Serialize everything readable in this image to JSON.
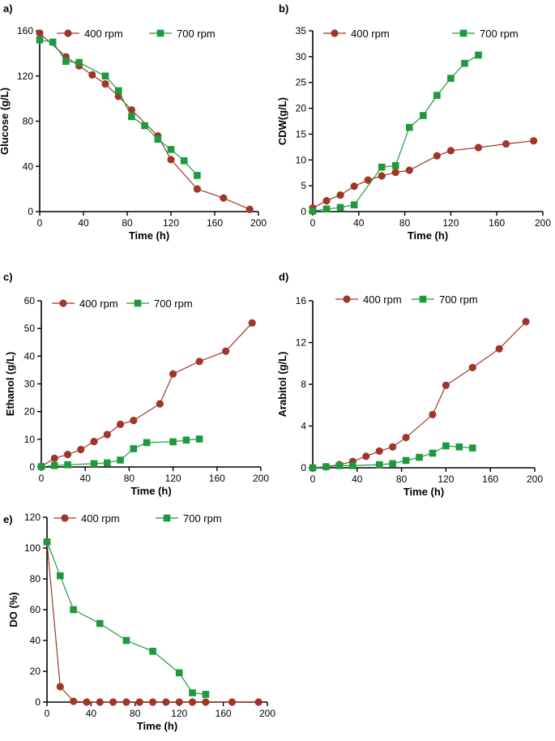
{
  "colors": {
    "series_400": "#A0362A",
    "series_700": "#1E9A3E",
    "axis": "#000000"
  },
  "chart_data": [
    {
      "panel": "a)",
      "type": "line",
      "xlabel": "Time (h)",
      "ylabel": "Glucose (g/L)",
      "xlim": [
        0,
        200
      ],
      "xticks": [
        0,
        40,
        80,
        120,
        160,
        200
      ],
      "ylim": [
        0,
        160
      ],
      "yticks": [
        0,
        40,
        80,
        120,
        160
      ],
      "series": [
        {
          "name": "400 rpm",
          "marker": "circle",
          "x": [
            0,
            24,
            36,
            48,
            60,
            72,
            84,
            108,
            120,
            144,
            168,
            192
          ],
          "y": [
            158,
            137,
            129,
            121,
            113,
            102,
            90,
            67,
            46,
            20,
            12,
            2
          ]
        },
        {
          "name": "700 rpm",
          "marker": "square",
          "x": [
            0,
            12,
            24,
            36,
            60,
            72,
            84,
            96,
            108,
            120,
            132,
            144
          ],
          "y": [
            152,
            150,
            133,
            132,
            120,
            107,
            84,
            76,
            64,
            55,
            45,
            32
          ]
        }
      ]
    },
    {
      "panel": "b)",
      "type": "line",
      "xlabel": "Time (h)",
      "ylabel": "CDW(g/L)",
      "xlim": [
        0,
        200
      ],
      "xticks": [
        0,
        40,
        80,
        120,
        160,
        200
      ],
      "ylim": [
        0,
        35
      ],
      "yticks": [
        0,
        5,
        10,
        15,
        20,
        25,
        30,
        35
      ],
      "series": [
        {
          "name": "400 rpm",
          "marker": "circle",
          "x": [
            0,
            12,
            24,
            36,
            48,
            60,
            72,
            84,
            108,
            120,
            144,
            168,
            192
          ],
          "y": [
            0.7,
            2.1,
            3.2,
            4.9,
            6.1,
            6.9,
            7.6,
            8.0,
            10.8,
            11.8,
            12.4,
            13.1,
            13.7
          ]
        },
        {
          "name": "700 rpm",
          "marker": "square",
          "x": [
            0,
            12,
            24,
            36,
            60,
            72,
            84,
            96,
            108,
            120,
            132,
            144
          ],
          "y": [
            0.1,
            0.5,
            0.8,
            1.3,
            8.6,
            8.9,
            16.3,
            18.6,
            22.5,
            25.8,
            28.7,
            30.3
          ]
        }
      ]
    },
    {
      "panel": "c)",
      "type": "line",
      "xlabel": "Time (h)",
      "ylabel": "Ethanol (g/L)",
      "xlim": [
        0,
        200
      ],
      "xticks": [
        0,
        40,
        80,
        120,
        160,
        200
      ],
      "ylim": [
        0,
        60
      ],
      "yticks": [
        0,
        10,
        20,
        30,
        40,
        50,
        60
      ],
      "series": [
        {
          "name": "400 rpm",
          "marker": "circle",
          "x": [
            0,
            12,
            24,
            36,
            48,
            60,
            72,
            84,
            108,
            120,
            144,
            168,
            192
          ],
          "y": [
            0.2,
            3.1,
            4.5,
            6.3,
            9.2,
            11.7,
            15.4,
            16.8,
            22.8,
            33.6,
            38.1,
            41.8,
            52.0
          ]
        },
        {
          "name": "700 rpm",
          "marker": "square",
          "x": [
            0,
            12,
            24,
            48,
            60,
            72,
            84,
            96,
            120,
            132,
            144
          ],
          "y": [
            0.1,
            0.5,
            0.8,
            1.2,
            1.5,
            2.5,
            6.6,
            8.8,
            9.1,
            9.7,
            10.1
          ]
        }
      ]
    },
    {
      "panel": "d)",
      "type": "line",
      "xlabel": "Time (h)",
      "ylabel": "Arabitol (g/L)",
      "xlim": [
        0,
        200
      ],
      "xticks": [
        0,
        40,
        80,
        120,
        160,
        200
      ],
      "ylim": [
        0,
        16
      ],
      "yticks": [
        0,
        4,
        8,
        12,
        16
      ],
      "series": [
        {
          "name": "400 rpm",
          "marker": "circle",
          "x": [
            0,
            12,
            24,
            36,
            48,
            60,
            72,
            84,
            108,
            120,
            144,
            168,
            192
          ],
          "y": [
            0,
            0.1,
            0.3,
            0.6,
            1.1,
            1.6,
            2.0,
            2.9,
            5.1,
            7.9,
            9.6,
            11.4,
            14.0
          ]
        },
        {
          "name": "700 rpm",
          "marker": "square",
          "x": [
            0,
            12,
            24,
            36,
            60,
            72,
            84,
            96,
            108,
            120,
            132,
            144
          ],
          "y": [
            0,
            0.1,
            0.2,
            0.2,
            0.3,
            0.4,
            0.7,
            1.0,
            1.4,
            2.1,
            2.0,
            1.9
          ]
        }
      ]
    },
    {
      "panel": "e)",
      "type": "line",
      "xlabel": "Time (h)",
      "ylabel": "DO (%)",
      "xlim": [
        0,
        200
      ],
      "xticks": [
        0,
        40,
        80,
        120,
        160,
        200
      ],
      "ylim": [
        0,
        120
      ],
      "yticks": [
        0,
        20,
        40,
        60,
        80,
        100,
        120
      ],
      "series": [
        {
          "name": "400 rpm",
          "marker": "circle",
          "x": [
            0,
            12,
            24,
            36,
            48,
            60,
            72,
            84,
            96,
            108,
            120,
            132,
            144,
            168,
            192
          ],
          "y": [
            104,
            10,
            0.5,
            0,
            0,
            0,
            0,
            0,
            0,
            0,
            0,
            0,
            0,
            0,
            0
          ]
        },
        {
          "name": "700 rpm",
          "marker": "square",
          "x": [
            0,
            12,
            24,
            48,
            72,
            96,
            120,
            132,
            144
          ],
          "y": [
            104,
            82,
            60,
            51,
            40,
            33,
            19,
            6,
            5
          ]
        }
      ]
    }
  ]
}
